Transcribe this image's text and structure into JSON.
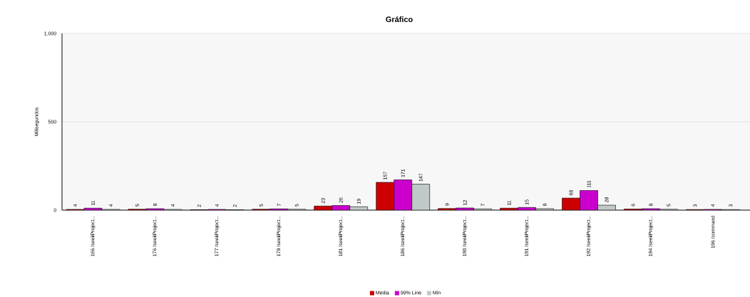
{
  "chart_data": {
    "type": "bar",
    "title": "Gráfico",
    "ylabel": "Milisegundos",
    "categories": [
      "166 /seeiiProject...",
      "176 /seeiiProject...",
      "177 /seeiiProject...",
      "179 /seeiiProject...",
      "181 /seeiiProject...",
      "186 /seeiiProject...",
      "190 /seeiiProject...",
      "191 /seeiiProject...",
      "192 /seeiiProject...",
      "194 /seeiiProject...",
      "196 /command"
    ],
    "series": [
      {
        "name": "Media",
        "color": "#cc0000",
        "values": [
          4,
          5,
          2,
          5,
          23,
          157,
          9,
          11,
          68,
          6,
          3
        ]
      },
      {
        "name": "99% Line",
        "color": "#cc00cc",
        "values": [
          11,
          8,
          4,
          7,
          26,
          171,
          12,
          15,
          111,
          8,
          4
        ]
      },
      {
        "name": "Min",
        "color": "#c0c8c8",
        "values": [
          4,
          4,
          2,
          5,
          19,
          147,
          7,
          8,
          28,
          5,
          3
        ]
      }
    ],
    "ylim": [
      0,
      1000
    ],
    "yticks": [
      0,
      500,
      {
        "value": 1000,
        "label": "1.000"
      }
    ],
    "grid": "y",
    "legend": "bottom",
    "data_labels": true
  }
}
